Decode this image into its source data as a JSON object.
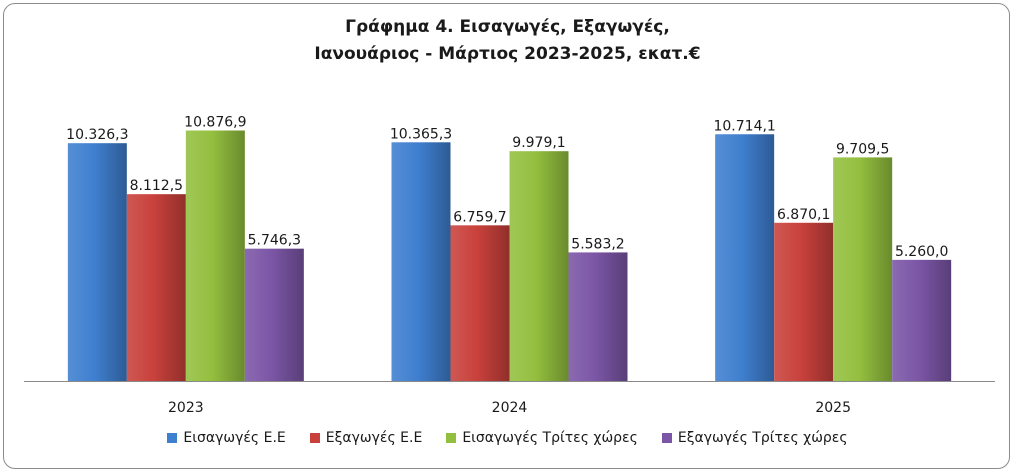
{
  "chart_data": {
    "type": "bar",
    "title_lines": [
      "Γράφημα 4. Εισαγωγές, Εξαγωγές,",
      "Ιανουάριος - Μάρτιος 2023-2025, εκατ.€"
    ],
    "categories": [
      "2023",
      "2024",
      "2025"
    ],
    "series": [
      {
        "name": "Εισαγωγές Ε.Ε",
        "color": "#3f7fcf",
        "values": [
          10326.3,
          10365.3,
          10714.1
        ],
        "labels": [
          "10.326,3",
          "10.365,3",
          "10.714,1"
        ]
      },
      {
        "name": "Εξαγωγές  Ε.Ε",
        "color": "#c9413c",
        "values": [
          8112.5,
          6759.7,
          6870.1
        ],
        "labels": [
          "8.112,5",
          "6.759,7",
          "6.870,1"
        ]
      },
      {
        "name": "Εισαγωγές Τρίτες χώρες",
        "color": "#93bf3f",
        "values": [
          10876.9,
          9979.1,
          9709.5
        ],
        "labels": [
          "10.876,9",
          "9.979,1",
          "9.709,5"
        ]
      },
      {
        "name": "Εξαγωγές Τρίτες χώρες",
        "color": "#7b56a6",
        "values": [
          5746.3,
          5583.2,
          5260.0
        ],
        "labels": [
          "5.746,3",
          "5.583,2",
          "5.260,0"
        ]
      }
    ],
    "ylim": [
      0,
      11000
    ],
    "grid": false,
    "legend": "bottom"
  }
}
